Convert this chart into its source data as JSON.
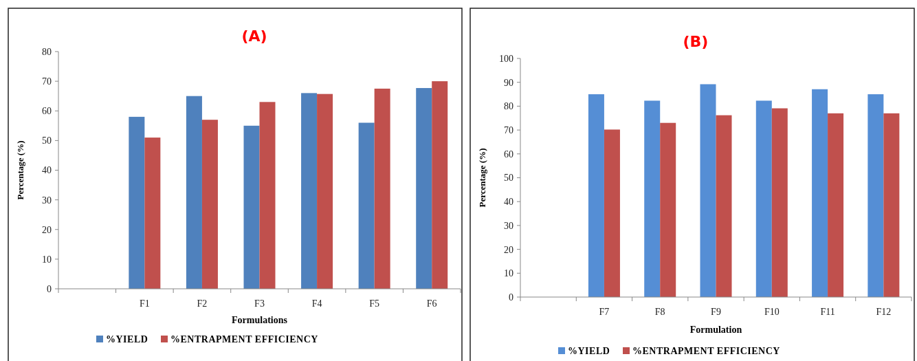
{
  "chart_data": [
    {
      "type": "bar",
      "title": "(A)",
      "xlabel": "Formulations",
      "ylabel": "Percentage (%)",
      "categories": [
        null,
        "F1",
        "F2",
        "F3",
        "F4",
        "F5",
        "F6"
      ],
      "series": [
        {
          "name": "%YIELD",
          "color": "#4f81bd",
          "values": [
            null,
            58,
            65,
            55,
            66,
            56,
            67.7
          ]
        },
        {
          "name": "%ENTRAPMENT EFFICIENCY",
          "color": "#c0504d",
          "values": [
            null,
            51,
            57,
            63,
            65.7,
            67.5,
            70
          ]
        }
      ],
      "ylim": [
        0,
        80
      ],
      "yticks": [
        0,
        10,
        20,
        30,
        40,
        50,
        60,
        70,
        80
      ],
      "grid": false,
      "legend": "bottom"
    },
    {
      "type": "bar",
      "title": "(B)",
      "xlabel": "Formulation",
      "ylabel": "Percentage (%)",
      "categories": [
        null,
        "F7",
        "F8",
        "F9",
        "F10",
        "F11",
        "F12"
      ],
      "series": [
        {
          "name": "%YIELD",
          "color": "#558ed5",
          "values": [
            null,
            85,
            82.3,
            89.2,
            82.3,
            87.1,
            85
          ]
        },
        {
          "name": "%ENTRAPMENT EFFICIENCY",
          "color": "#c0504d",
          "values": [
            null,
            70.2,
            73,
            76.2,
            79.1,
            77,
            77
          ]
        }
      ],
      "ylim": [
        0,
        100
      ],
      "yticks": [
        0,
        10,
        20,
        30,
        40,
        50,
        60,
        70,
        80,
        90,
        100
      ],
      "grid": false,
      "legend": "bottom"
    }
  ]
}
